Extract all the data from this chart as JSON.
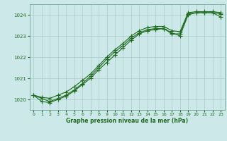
{
  "background_color": "#cce8e8",
  "grid_color": "#aacccc",
  "line_color": "#1e6b1e",
  "xlabel": "Graphe pression niveau de la mer (hPa)",
  "xlim": [
    -0.5,
    23.5
  ],
  "ylim": [
    1019.5,
    1024.5
  ],
  "yticks": [
    1020,
    1021,
    1022,
    1023,
    1024
  ],
  "xticks": [
    0,
    1,
    2,
    3,
    4,
    5,
    6,
    7,
    8,
    9,
    10,
    11,
    12,
    13,
    14,
    15,
    16,
    17,
    18,
    19,
    20,
    21,
    22,
    23
  ],
  "series1_x": [
    0,
    1,
    2,
    3,
    4,
    5,
    6,
    7,
    8,
    9,
    10,
    11,
    12,
    13,
    14,
    15,
    16,
    17,
    18,
    19,
    20,
    21,
    22,
    23
  ],
  "series1_y": [
    1020.2,
    1019.9,
    1019.85,
    1020.0,
    1020.15,
    1020.4,
    1020.7,
    1021.0,
    1021.4,
    1021.75,
    1022.1,
    1022.45,
    1022.8,
    1023.1,
    1023.25,
    1023.3,
    1023.35,
    1023.15,
    1023.0,
    1024.0,
    1024.1,
    1024.1,
    1024.1,
    1023.9
  ],
  "series2_x": [
    0,
    1,
    2,
    3,
    4,
    5,
    6,
    7,
    8,
    9,
    10,
    11,
    12,
    13,
    14,
    15,
    16,
    17,
    18,
    19,
    20,
    21,
    22,
    23
  ],
  "series2_y": [
    1020.2,
    1020.05,
    1019.9,
    1020.05,
    1020.2,
    1020.45,
    1020.75,
    1021.1,
    1021.5,
    1021.9,
    1022.25,
    1022.55,
    1022.9,
    1023.15,
    1023.3,
    1023.35,
    1023.35,
    1023.1,
    1023.1,
    1024.05,
    1024.1,
    1024.1,
    1024.1,
    1024.05
  ],
  "series3_x": [
    0,
    1,
    2,
    3,
    4,
    5,
    6,
    7,
    8,
    9,
    10,
    11,
    12,
    13,
    14,
    15,
    16,
    17,
    18,
    19,
    20,
    21,
    22,
    23
  ],
  "series3_y": [
    1020.2,
    1020.1,
    1020.05,
    1020.2,
    1020.35,
    1020.6,
    1020.9,
    1021.2,
    1021.6,
    1022.0,
    1022.35,
    1022.65,
    1023.0,
    1023.25,
    1023.4,
    1023.45,
    1023.45,
    1023.25,
    1023.2,
    1024.1,
    1024.15,
    1024.15,
    1024.15,
    1024.1
  ],
  "marker_size": 4,
  "line_width": 0.8
}
